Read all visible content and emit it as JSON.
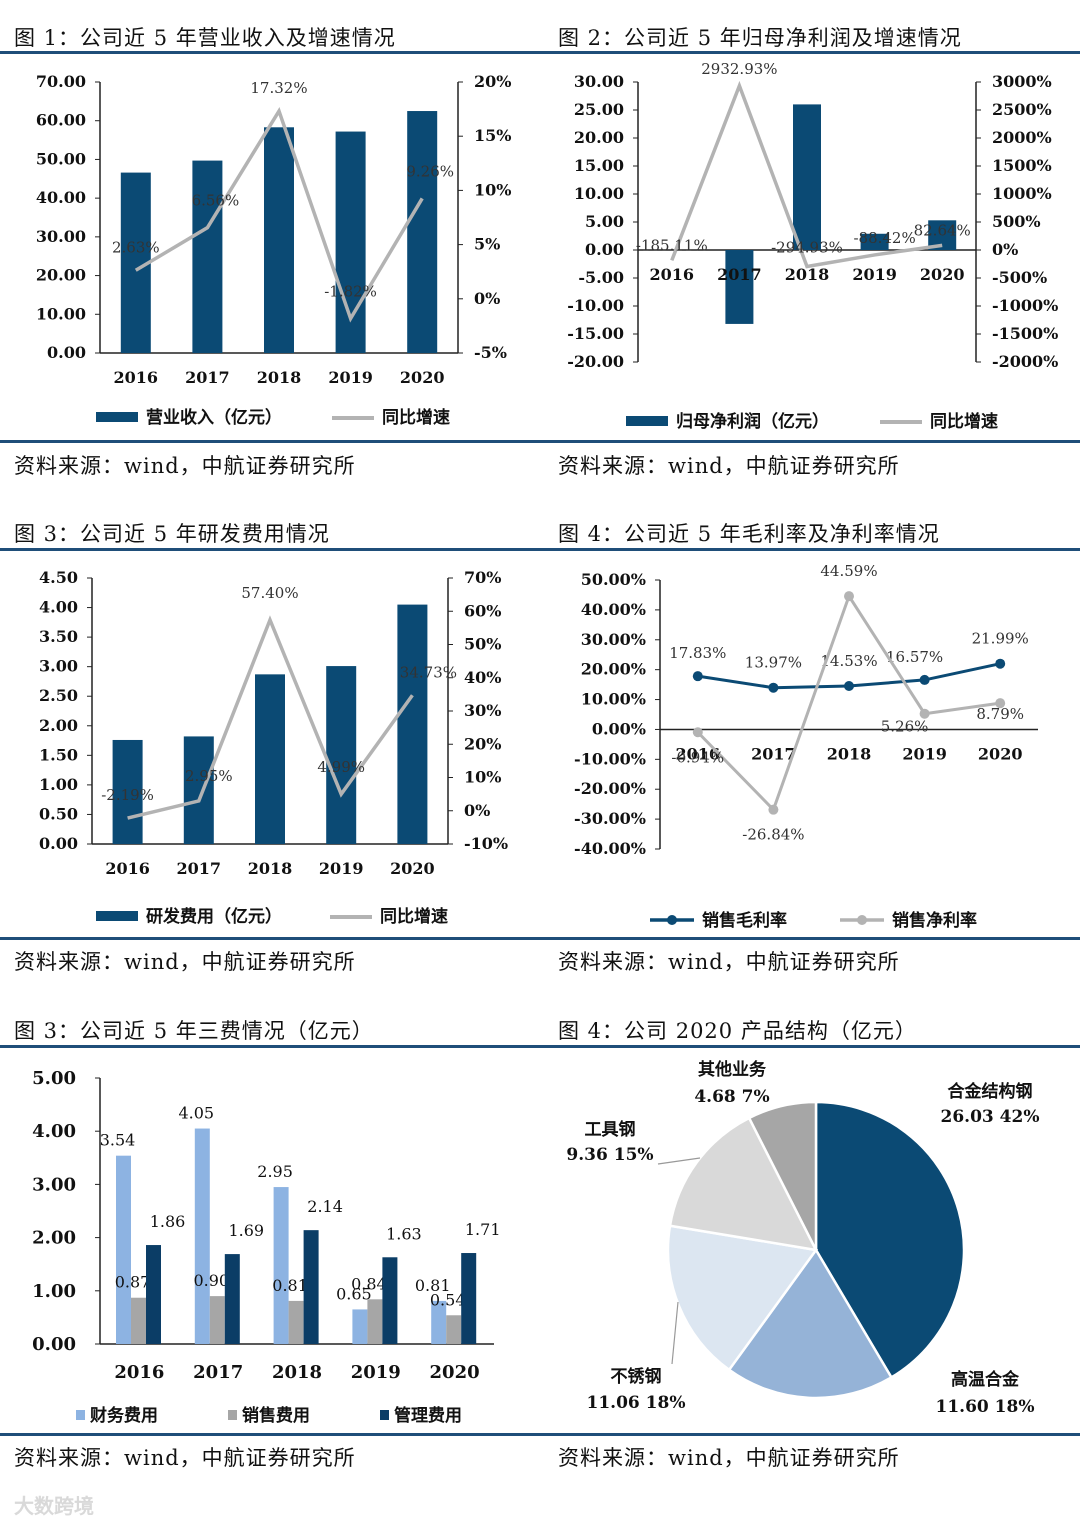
{
  "colors": {
    "navy": "#0b4a74",
    "gray_line": "#b3b3b3",
    "rule": "#1f4e79",
    "lightblue": "#8db3e2",
    "midgray": "#a6a6a6",
    "darknavy": "#0b3d66"
  },
  "panels": [
    {
      "title": "图 1：公司近 5 年营业收入及增速情况",
      "source": "资料来源：wind，中航证券研究所"
    },
    {
      "title": "图 2：公司近 5 年归母净利润及增速情况",
      "source": "资料来源：wind，中航证券研究所"
    },
    {
      "title": "图 3：公司近 5 年研发费用情况",
      "source": "资料来源：wind，中航证券研究所"
    },
    {
      "title": "图 4：公司近 5 年毛利率及净利率情况",
      "source": "资料来源：wind，中航证券研究所"
    },
    {
      "title": "图 3：公司近 5 年三费情况（亿元）",
      "source": "资料来源：wind，中航证券研究所"
    },
    {
      "title": "图 4：公司 2020 产品结构（亿元）",
      "source": "资料来源：wind，中航证券研究所"
    }
  ],
  "watermark": "大数跨境",
  "chart_data": [
    {
      "type": "bar",
      "categories": [
        "2016",
        "2017",
        "2018",
        "2019",
        "2020"
      ],
      "series": [
        {
          "name": "营业收入（亿元）",
          "values": [
            46.6,
            49.7,
            58.3,
            57.2,
            62.5
          ],
          "axis": "left"
        },
        {
          "name": "同比增速",
          "type": "line",
          "values": [
            2.63,
            6.56,
            17.32,
            -1.82,
            9.26
          ],
          "labels": [
            "2.63%",
            "6.56%",
            "17.32%",
            "-1.82%",
            "9.26%"
          ],
          "axis": "right"
        }
      ],
      "y_ticks": [
        "70.00",
        "60.00",
        "50.00",
        "40.00",
        "30.00",
        "20.00",
        "10.00",
        "0.00"
      ],
      "y2_ticks": [
        "20%",
        "15%",
        "10%",
        "5%",
        "0%",
        "-5%"
      ],
      "ylim": [
        0,
        70
      ],
      "y2lim": [
        -5,
        20
      ],
      "legend": "bottom"
    },
    {
      "type": "bar",
      "categories": [
        "2016",
        "2017",
        "2018",
        "2019",
        "2020"
      ],
      "series": [
        {
          "name": "归母净利润（亿元）",
          "values": [
            0.0,
            -13.2,
            26.0,
            2.9,
            5.3
          ],
          "axis": "left"
        },
        {
          "name": "同比增速",
          "type": "line",
          "values": [
            -185.11,
            2932.93,
            -294.93,
            -88.42,
            82.64
          ],
          "labels": [
            "-185.11%",
            "2932.93%",
            "-294.93%",
            "-88.42%",
            "82.64%"
          ],
          "axis": "right"
        }
      ],
      "y_ticks": [
        "30.00",
        "25.00",
        "20.00",
        "15.00",
        "10.00",
        "5.00",
        "0.00",
        "-5.00",
        "-10.00",
        "-15.00",
        "-20.00"
      ],
      "y2_ticks": [
        "3000%",
        "2500%",
        "2000%",
        "1500%",
        "1000%",
        "500%",
        "0%",
        "-500%",
        "-1000%",
        "-1500%",
        "-2000%"
      ],
      "ylim": [
        -20,
        30
      ],
      "y2lim": [
        -2000,
        3000
      ],
      "legend": "bottom"
    },
    {
      "type": "bar",
      "categories": [
        "2016",
        "2017",
        "2018",
        "2019",
        "2020"
      ],
      "series": [
        {
          "name": "研发费用（亿元）",
          "values": [
            1.76,
            1.82,
            2.87,
            3.01,
            4.05
          ],
          "axis": "left"
        },
        {
          "name": "同比增速",
          "type": "line",
          "values": [
            -2.19,
            2.95,
            57.4,
            4.99,
            34.73
          ],
          "labels": [
            "-2.19%",
            "2.95%",
            "57.40%",
            "4.99%",
            "34.73%"
          ],
          "axis": "right"
        }
      ],
      "y_ticks": [
        "4.50",
        "4.00",
        "3.50",
        "3.00",
        "2.50",
        "2.00",
        "1.50",
        "1.00",
        "0.50",
        "0.00"
      ],
      "y2_ticks": [
        "70%",
        "60%",
        "50%",
        "40%",
        "30%",
        "20%",
        "10%",
        "0%",
        "-10%"
      ],
      "ylim": [
        0,
        4.5
      ],
      "y2lim": [
        -10,
        70
      ],
      "legend": "bottom"
    },
    {
      "type": "line",
      "categories": [
        "2016",
        "2017",
        "2018",
        "2019",
        "2020"
      ],
      "series": [
        {
          "name": "销售毛利率",
          "values": [
            17.83,
            13.97,
            14.53,
            16.57,
            21.99
          ],
          "labels": [
            "17.83%",
            "13.97%",
            "14.53%",
            "16.57%",
            "21.99%"
          ]
        },
        {
          "name": "销售净利率",
          "values": [
            -0.94,
            -26.84,
            44.59,
            5.26,
            8.79
          ],
          "labels": [
            "-0.94%",
            "-26.84%",
            "44.59%",
            "5.26%",
            "8.79%"
          ]
        }
      ],
      "y_ticks": [
        "50.00%",
        "40.00%",
        "30.00%",
        "20.00%",
        "10.00%",
        "0.00%",
        "-10.00%",
        "-20.00%",
        "-30.00%",
        "-40.00%"
      ],
      "ylim": [
        -40,
        50
      ],
      "legend": "bottom"
    },
    {
      "type": "bar",
      "categories": [
        "2016",
        "2017",
        "2018",
        "2019",
        "2020"
      ],
      "series": [
        {
          "name": "财务费用",
          "values": [
            3.54,
            4.05,
            2.95,
            0.65,
            0.81
          ],
          "labels": [
            "3.54",
            "4.05",
            "2.95",
            "0.65",
            "0.81"
          ]
        },
        {
          "name": "销售费用",
          "values": [
            0.87,
            0.9,
            0.81,
            0.84,
            0.54
          ],
          "labels": [
            "0.87",
            "0.90",
            "0.81",
            "0.84",
            "0.54"
          ]
        },
        {
          "name": "管理费用",
          "values": [
            1.86,
            1.69,
            2.14,
            1.63,
            1.71
          ],
          "labels": [
            "1.86",
            "1.69",
            "2.14",
            "1.63",
            "1.71"
          ]
        }
      ],
      "y_ticks": [
        "5.00",
        "4.00",
        "3.00",
        "2.00",
        "1.00",
        "0.00"
      ],
      "ylim": [
        0,
        5
      ],
      "legend": "bottom"
    },
    {
      "type": "pie",
      "slices": [
        {
          "name": "合金结构钢",
          "value": 26.03,
          "pct": "42%",
          "label": "26.03 42%",
          "color": "#0b4a74"
        },
        {
          "name": "高温合金",
          "value": 11.6,
          "pct": "18%",
          "label": "11.60 18%",
          "color": "#95b3d7"
        },
        {
          "name": "不锈钢",
          "value": 11.06,
          "pct": "18%",
          "label": "11.06 18%",
          "color": "#dce6f1"
        },
        {
          "name": "工具钢",
          "value": 9.36,
          "pct": "15%",
          "label": "9.36 15%",
          "color": "#d9d9d9"
        },
        {
          "name": "其他业务",
          "value": 4.68,
          "pct": "7%",
          "label": "4.68 7%",
          "color": "#a6a6a6"
        }
      ]
    }
  ]
}
